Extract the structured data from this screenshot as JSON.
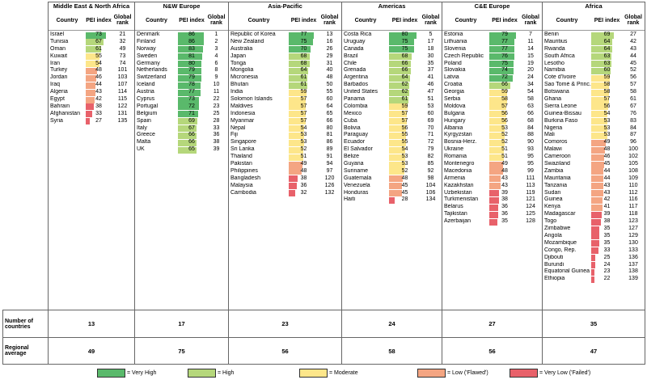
{
  "row_labels": {
    "countries": "Number of countries",
    "average": "Regional average"
  },
  "columns": {
    "country": "Country",
    "pei": "PEI index",
    "rank": "Global rank"
  },
  "colors": {
    "very_high": "#5ab96b",
    "high": "#b5d77b",
    "moderate": "#fde68a",
    "low": "#f4a582",
    "very_low": "#e8616a"
  },
  "legend": [
    {
      "key": "very_high",
      "label": "= Very High"
    },
    {
      "key": "high",
      "label": "= High"
    },
    {
      "key": "moderate",
      "label": "= Moderate"
    },
    {
      "key": "low",
      "label": "= Low ('Flawed')"
    },
    {
      "key": "very_low",
      "label": "= Very Low ('Failed')"
    }
  ],
  "regions": [
    {
      "name": "Middle East & North Africa",
      "count": "13",
      "average": "49",
      "rows": [
        [
          "Israel",
          73,
          21
        ],
        [
          "Tunisia",
          67,
          32
        ],
        [
          "Oman",
          61,
          49
        ],
        [
          "Kuwait",
          55,
          73
        ],
        [
          "Iran",
          54,
          74
        ],
        [
          "Turkey",
          48,
          101
        ],
        [
          "Jordan",
          46,
          103
        ],
        [
          "Iraq",
          44,
          107
        ],
        [
          "Algeria",
          43,
          114
        ],
        [
          "Egypt",
          42,
          115
        ],
        [
          "Bahrain",
          38,
          122
        ],
        [
          "Afghanistan",
          33,
          131
        ],
        [
          "Syria",
          27,
          135
        ]
      ]
    },
    {
      "name": "N&W Europe",
      "count": "17",
      "average": "75",
      "rows": [
        [
          "Denmark",
          86,
          1
        ],
        [
          "Finland",
          86,
          2
        ],
        [
          "Norway",
          83,
          3
        ],
        [
          "Sweden",
          81,
          4
        ],
        [
          "Germany",
          80,
          6
        ],
        [
          "Netherlands",
          79,
          8
        ],
        [
          "Switzerland",
          79,
          9
        ],
        [
          "Iceland",
          78,
          10
        ],
        [
          "Austria",
          77,
          11
        ],
        [
          "Cyprus",
          73,
          22
        ],
        [
          "Portugal",
          72,
          23
        ],
        [
          "Belgium",
          71,
          25
        ],
        [
          "Spain",
          69,
          28
        ],
        [
          "Italy",
          67,
          33
        ],
        [
          "Greece",
          66,
          36
        ],
        [
          "Malta",
          66,
          38
        ],
        [
          "UK",
          65,
          39
        ]
      ]
    },
    {
      "name": "Asia-Pacific",
      "count": "23",
      "average": "56",
      "rows": [
        [
          "Republic of Korea",
          77,
          13
        ],
        [
          "New Zealand",
          75,
          16
        ],
        [
          "Australia",
          70,
          26
        ],
        [
          "Japan",
          68,
          29
        ],
        [
          "Tonga",
          68,
          31
        ],
        [
          "Mongolia",
          64,
          40
        ],
        [
          "Micronesia",
          61,
          48
        ],
        [
          "Bhutan",
          61,
          50
        ],
        [
          "India",
          59,
          55
        ],
        [
          "Solomon Islands",
          57,
          60
        ],
        [
          "Maldives",
          57,
          64
        ],
        [
          "Indonesia",
          57,
          65
        ],
        [
          "Myanmar",
          57,
          66
        ],
        [
          "Nepal",
          54,
          80
        ],
        [
          "Fiji",
          53,
          81
        ],
        [
          "Singapore",
          53,
          86
        ],
        [
          "Sri Lanka",
          52,
          89
        ],
        [
          "Thailand",
          51,
          91
        ],
        [
          "Pakistan",
          49,
          94
        ],
        [
          "Philippines",
          48,
          97
        ],
        [
          "Bangladesh",
          38,
          120
        ],
        [
          "Malaysia",
          36,
          126
        ],
        [
          "Cambodia",
          32,
          132
        ]
      ]
    },
    {
      "name": "Americas",
      "count": "24",
      "average": "58",
      "rows": [
        [
          "Costa Rica",
          80,
          5
        ],
        [
          "Uruguay",
          75,
          17
        ],
        [
          "Canada",
          75,
          18
        ],
        [
          "Brazil",
          68,
          30
        ],
        [
          "Chile",
          66,
          35
        ],
        [
          "Grenada",
          66,
          37
        ],
        [
          "Argentina",
          64,
          41
        ],
        [
          "Barbados",
          62,
          46
        ],
        [
          "United States",
          62,
          47
        ],
        [
          "Panama",
          61,
          51
        ],
        [
          "Colombia",
          59,
          53
        ],
        [
          "Mexico",
          57,
          60
        ],
        [
          "Cuba",
          57,
          69
        ],
        [
          "Bolivia",
          56,
          70
        ],
        [
          "Paraguay",
          55,
          71
        ],
        [
          "Ecuador",
          55,
          72
        ],
        [
          "El Salvador",
          54,
          79
        ],
        [
          "Belize",
          53,
          82
        ],
        [
          "Guyana",
          53,
          85
        ],
        [
          "Suriname",
          52,
          92
        ],
        [
          "Guatemala",
          48,
          98
        ],
        [
          "Venezuela",
          45,
          104
        ],
        [
          "Honduras",
          45,
          106
        ],
        [
          "Haiti",
          28,
          134
        ]
      ]
    },
    {
      "name": "C&E Europe",
      "count": "27",
      "average": "56",
      "rows": [
        [
          "Estonia",
          79,
          7
        ],
        [
          "Lithuania",
          77,
          11
        ],
        [
          "Slovenia",
          77,
          14
        ],
        [
          "Czech Republic",
          76,
          15
        ],
        [
          "Poland",
          75,
          19
        ],
        [
          "Slovakia",
          74,
          20
        ],
        [
          "Latvia",
          72,
          24
        ],
        [
          "Croatia",
          66,
          34
        ],
        [
          "Georgia",
          59,
          54
        ],
        [
          "Serbia",
          58,
          58
        ],
        [
          "Moldova",
          57,
          63
        ],
        [
          "Bulgaria",
          56,
          66
        ],
        [
          "Hungary",
          56,
          68
        ],
        [
          "Albania",
          53,
          84
        ],
        [
          "Kyrgyzstan",
          52,
          88
        ],
        [
          "Bosnia-Herz.",
          52,
          90
        ],
        [
          "Ukraine",
          51,
          93
        ],
        [
          "Romania",
          51,
          95
        ],
        [
          "Montenegro",
          49,
          95
        ],
        [
          "Macedonia",
          48,
          99
        ],
        [
          "Armenia",
          43,
          111
        ],
        [
          "Kazakhstan",
          43,
          113
        ],
        [
          "Uzbekistan",
          39,
          119
        ],
        [
          "Turkmenistan",
          38,
          121
        ],
        [
          "Belarus",
          36,
          124
        ],
        [
          "Tajikistan",
          36,
          125
        ],
        [
          "Azerbaijan",
          35,
          128
        ]
      ]
    },
    {
      "name": "Africa",
      "count": "35",
      "average": "47",
      "rows": [
        [
          "Benin",
          69,
          27
        ],
        [
          "Mauritius",
          64,
          42
        ],
        [
          "Rwanda",
          64,
          43
        ],
        [
          "South Africa",
          63,
          44
        ],
        [
          "Lesotho",
          63,
          45
        ],
        [
          "Namibia",
          60,
          52
        ],
        [
          "Cote d'Ivoire",
          59,
          56
        ],
        [
          "Sao Tomé & Princ.",
          58,
          57
        ],
        [
          "Botswana",
          58,
          58
        ],
        [
          "Ghana",
          57,
          61
        ],
        [
          "Sierra Leone",
          56,
          67
        ],
        [
          "Guinea-Bissau",
          54,
          76
        ],
        [
          "Burkina Faso",
          53,
          83
        ],
        [
          "Nigeria",
          53,
          84
        ],
        [
          "Mali",
          53,
          87
        ],
        [
          "Comoros",
          49,
          96
        ],
        [
          "Malawi",
          48,
          100
        ],
        [
          "Cameroon",
          46,
          102
        ],
        [
          "Swaziland",
          45,
          105
        ],
        [
          "Zambia",
          44,
          108
        ],
        [
          "Mauritania",
          44,
          109
        ],
        [
          "Tanzania",
          43,
          110
        ],
        [
          "Sudan",
          43,
          112
        ],
        [
          "Guinea",
          42,
          116
        ],
        [
          "Kenya",
          41,
          117
        ],
        [
          "Madagascar",
          39,
          118
        ],
        [
          "Togo",
          38,
          123
        ],
        [
          "Zimbabwe",
          35,
          127
        ],
        [
          "Angola",
          35,
          129
        ],
        [
          "Mozambique",
          35,
          130
        ],
        [
          "Congo, Rep.",
          33,
          133
        ],
        [
          "Djibouti",
          25,
          136
        ],
        [
          "Burundi",
          24,
          137
        ],
        [
          "Equatorial Guinea",
          23,
          138
        ],
        [
          "Ethiopia",
          22,
          139
        ]
      ]
    }
  ]
}
